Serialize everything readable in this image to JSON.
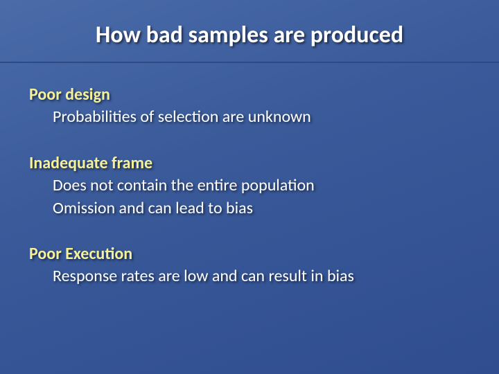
{
  "slide": {
    "title": "How bad samples are produced",
    "title_fontsize": 34,
    "title_color": "#ffffff",
    "rule_color": "#2e4a85",
    "background_gradient": [
      "#4a6ba8",
      "#3a5a9a",
      "#2f4d8f"
    ],
    "section_title_color": "#f5f09a",
    "bullet_color": "#ffffff",
    "body_fontsize": 24,
    "sections": [
      {
        "title": "Poor design",
        "bullets": [
          "Probabilities of selection are unknown"
        ]
      },
      {
        "title": "Inadequate frame",
        "bullets": [
          "Does not contain the entire population",
          "Omission and can lead to bias"
        ]
      },
      {
        "title": "Poor Execution",
        "bullets": [
          "Response rates are low and can result in bias"
        ]
      }
    ]
  }
}
